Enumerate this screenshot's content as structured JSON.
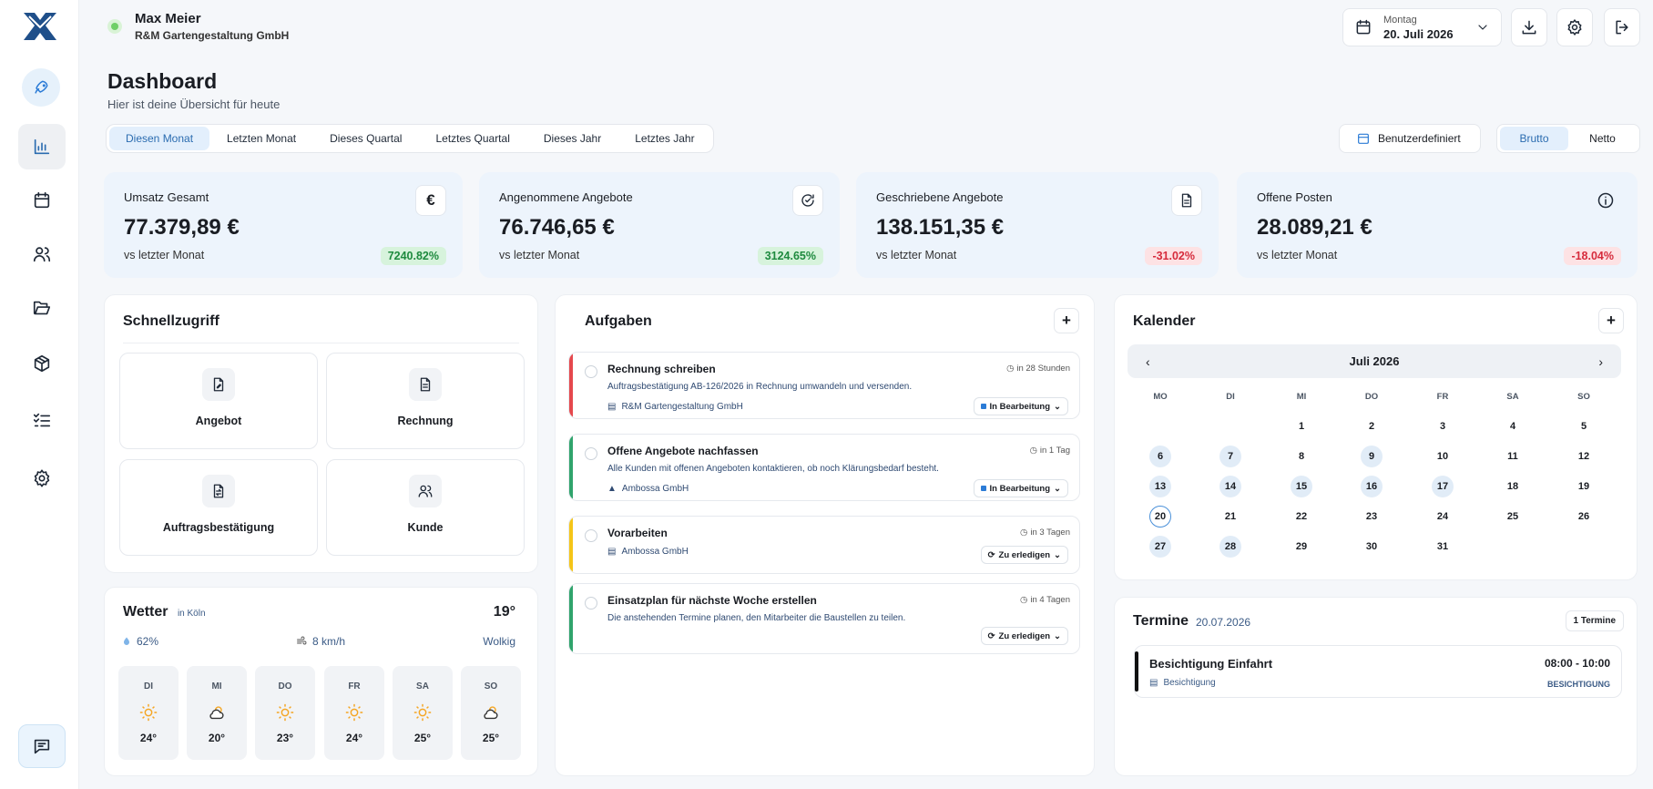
{
  "user": {
    "name": "Max Meier",
    "company": "R&M Gartengestaltung GmbH"
  },
  "date": {
    "weekday": "Montag",
    "full": "20. Juli 2026"
  },
  "page": {
    "title": "Dashboard",
    "subtitle": "Hier ist deine Übersicht für heute"
  },
  "tabs": [
    "Diesen Monat",
    "Letzten Monat",
    "Dieses Quartal",
    "Letztes Quartal",
    "Dieses Jahr",
    "Letztes Jahr"
  ],
  "custom_range_label": "Benutzerdefiniert",
  "toggle": {
    "gross": "Brutto",
    "net": "Netto"
  },
  "stats": [
    {
      "label": "Umsatz Gesamt",
      "value": "77.379,89 €",
      "compare": "vs letzter Monat",
      "change": "7240.82%",
      "trend": "up",
      "icon": "euro-icon"
    },
    {
      "label": "Angenommene Angebote",
      "value": "76.746,65 €",
      "compare": "vs letzter Monat",
      "change": "3124.65%",
      "trend": "up",
      "icon": "refresh-check-icon"
    },
    {
      "label": "Geschriebene Angebote",
      "value": "138.151,35 €",
      "compare": "vs letzter Monat",
      "change": "-31.02%",
      "trend": "down",
      "icon": "document-icon"
    },
    {
      "label": "Offene Posten",
      "value": "28.089,21 €",
      "compare": "vs letzter Monat",
      "change": "-18.04%",
      "trend": "down",
      "icon": "info-icon"
    }
  ],
  "quick": {
    "title": "Schnellzugriff",
    "items": [
      "Angebot",
      "Rechnung",
      "Auftragsbestätigung",
      "Kunde"
    ]
  },
  "weather": {
    "title": "Wetter",
    "location": "in Köln",
    "temp": "19°",
    "humidity": "62%",
    "wind": "8 km/h",
    "condition": "Wolkig",
    "days": [
      {
        "d": "DI",
        "t": "24°",
        "i": "sun"
      },
      {
        "d": "MI",
        "t": "20°",
        "i": "cloud"
      },
      {
        "d": "DO",
        "t": "23°",
        "i": "sun"
      },
      {
        "d": "FR",
        "t": "24°",
        "i": "sun"
      },
      {
        "d": "SA",
        "t": "25°",
        "i": "sun"
      },
      {
        "d": "SO",
        "t": "25°",
        "i": "cloud"
      }
    ]
  },
  "tasks": {
    "title": "Aufgaben",
    "items": [
      {
        "title": "Rechnung schreiben",
        "due": "in 28 Stunden",
        "desc": "Auftragsbestätigung AB-126/2026 in Rechnung umwandeln und versenden.",
        "company": "R&M Gartengestaltung GmbH",
        "status": "In Bearbeitung",
        "color": "#e5484d"
      },
      {
        "title": "Offene Angebote nachfassen",
        "due": "in 1 Tag",
        "desc": "Alle Kunden mit offenen Angeboten kontaktieren, ob noch Klärungsbedarf besteht.",
        "company": "Ambossa GmbH",
        "status": "In Bearbeitung",
        "color": "#30a46c"
      },
      {
        "title": "Vorarbeiten",
        "due": "in 3 Tagen",
        "desc": "",
        "company": "Ambossa GmbH",
        "status": "Zu erledigen",
        "color": "#f5c518"
      },
      {
        "title": "Einsatzplan für nächste Woche erstellen",
        "due": "in 4 Tagen",
        "desc": "Die anstehenden Termine planen, den Mitarbeiter die Baustellen zu teilen.",
        "company": "",
        "status": "Zu erledigen",
        "color": "#30a46c"
      }
    ]
  },
  "calendar": {
    "title": "Kalender",
    "month": "Juli 2026",
    "weekdays": [
      "MO",
      "DI",
      "MI",
      "DO",
      "FR",
      "SA",
      "SO"
    ],
    "weeks": [
      [
        "",
        "",
        "1",
        "2",
        "3",
        "4",
        "5"
      ],
      [
        "6",
        "7",
        "8",
        "9",
        "10",
        "11",
        "12"
      ],
      [
        "13",
        "14",
        "15",
        "16",
        "17",
        "18",
        "19"
      ],
      [
        "20",
        "21",
        "22",
        "23",
        "24",
        "25",
        "26"
      ],
      [
        "27",
        "28",
        "29",
        "30",
        "31",
        "",
        ""
      ]
    ],
    "highlighted": [
      "6",
      "7",
      "9",
      "13",
      "14",
      "15",
      "16",
      "17",
      "27",
      "28"
    ],
    "today": "20"
  },
  "appointments": {
    "title": "Termine",
    "date": "20.07.2026",
    "count": "1 Termine",
    "items": [
      {
        "title": "Besichtigung Einfahrt",
        "time": "08:00 - 10:00",
        "type": "Besichtigung",
        "tag": "BESICHTIGUNG"
      }
    ]
  }
}
